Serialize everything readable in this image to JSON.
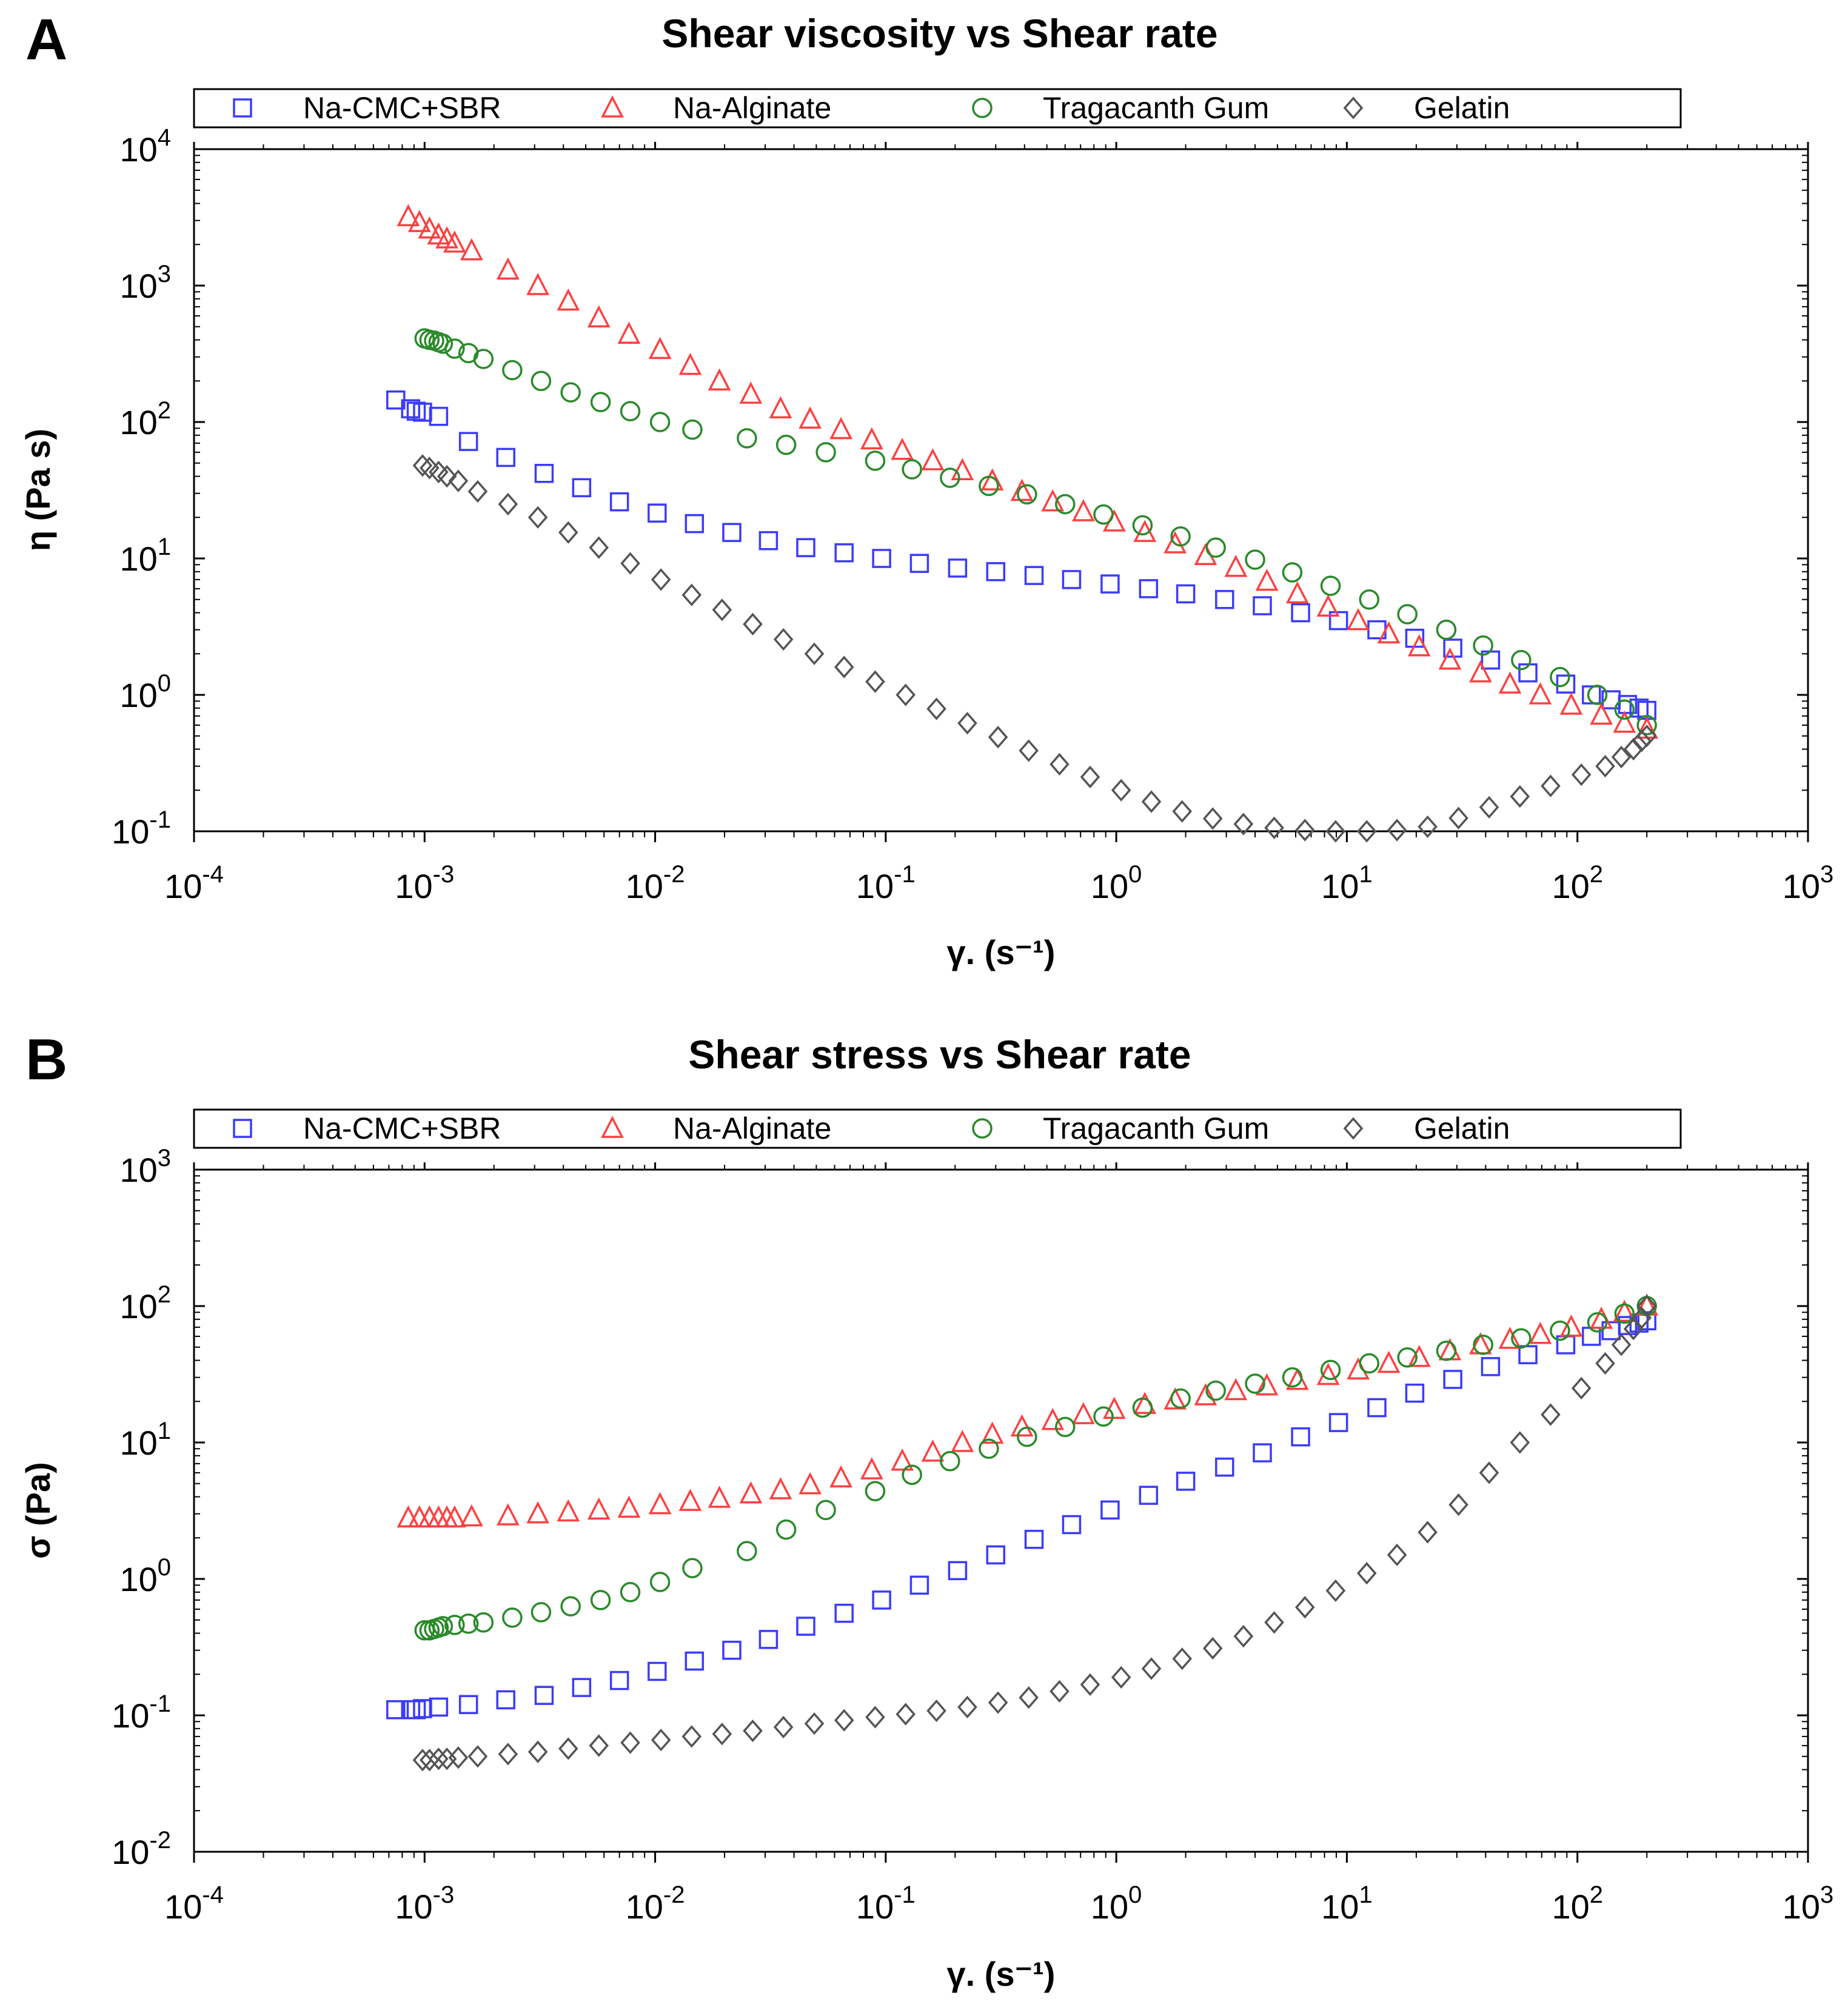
{
  "chart_data": [
    {
      "panel": "A",
      "type": "scatter",
      "title": "Shear viscosity vs Shear rate",
      "xlabel": "γ. (s⁻¹)",
      "ylabel": "η (Pa s)",
      "xscale": "log",
      "yscale": "log",
      "xlim": [
        0.0001,
        1000
      ],
      "ylim": [
        0.1,
        10000
      ],
      "x_ticks": [
        "10-4",
        "10-3",
        "10-2",
        "10-1",
        "100",
        "101",
        "102",
        "103"
      ],
      "y_ticks": [
        "10-1",
        "100",
        "101",
        "102",
        "103",
        "104"
      ],
      "legend_position": "top",
      "series": [
        {
          "name": "Na-CMC+SBR",
          "marker": "square",
          "color": "#3b3bff",
          "x": [
            0.00075,
            0.00087,
            0.00092,
            0.00098,
            0.00115,
            0.00155,
            0.00225,
            0.0033,
            0.0048,
            0.007,
            0.0102,
            0.0148,
            0.0215,
            0.031,
            0.045,
            0.066,
            0.096,
            0.14,
            0.205,
            0.3,
            0.44,
            0.64,
            0.94,
            1.38,
            2.0,
            2.95,
            4.3,
            6.3,
            9.2,
            13.5,
            19.7,
            28.8,
            42,
            61,
            89,
            115,
            140,
            165,
            185,
            200
          ],
          "y": [
            145,
            125,
            120,
            118,
            110,
            72,
            55,
            42,
            33,
            26,
            21.5,
            18,
            15.5,
            13.5,
            12,
            11,
            10,
            9.2,
            8.5,
            8.0,
            7.5,
            7.0,
            6.5,
            6.0,
            5.5,
            5.0,
            4.5,
            4.0,
            3.5,
            3.0,
            2.6,
            2.2,
            1.8,
            1.45,
            1.2,
            1.0,
            0.92,
            0.85,
            0.8,
            0.77
          ]
        },
        {
          "name": "Na-Alginate",
          "marker": "triangle",
          "color": "#ff4040",
          "x": [
            0.00085,
            0.00095,
            0.00105,
            0.00115,
            0.00125,
            0.00135,
            0.0016,
            0.0023,
            0.0031,
            0.0042,
            0.0057,
            0.0077,
            0.0105,
            0.0142,
            0.019,
            0.026,
            0.035,
            0.047,
            0.064,
            0.087,
            0.118,
            0.16,
            0.215,
            0.29,
            0.39,
            0.53,
            0.72,
            0.98,
            1.33,
            1.8,
            2.44,
            3.3,
            4.5,
            6.1,
            8.3,
            11.2,
            15.2,
            20.6,
            28,
            38,
            51,
            69,
            94,
            127,
            160,
            200
          ],
          "y": [
            3200,
            2900,
            2600,
            2350,
            2200,
            2050,
            1800,
            1300,
            1000,
            770,
            580,
            440,
            340,
            260,
            200,
            160,
            125,
            105,
            88,
            74,
            62,
            52,
            44,
            37,
            31,
            26,
            22,
            18.5,
            15.5,
            12.8,
            10.5,
            8.6,
            6.8,
            5.5,
            4.4,
            3.5,
            2.8,
            2.25,
            1.8,
            1.45,
            1.2,
            1.0,
            0.84,
            0.71,
            0.62,
            0.56
          ]
        },
        {
          "name": "Tragacanth Gum",
          "marker": "circle",
          "color": "#2a8a2a",
          "x": [
            0.001,
            0.00105,
            0.0011,
            0.00115,
            0.0012,
            0.00135,
            0.00155,
            0.0018,
            0.0024,
            0.0032,
            0.0043,
            0.0058,
            0.0078,
            0.0105,
            0.0145,
            0.025,
            0.037,
            0.055,
            0.09,
            0.13,
            0.19,
            0.28,
            0.41,
            0.6,
            0.88,
            1.3,
            1.9,
            2.7,
            4.0,
            5.8,
            8.5,
            12.5,
            18.3,
            27,
            39,
            57,
            84,
            122,
            160,
            200
          ],
          "y": [
            410,
            400,
            395,
            385,
            375,
            345,
            320,
            290,
            240,
            200,
            165,
            140,
            120,
            100,
            88,
            76,
            68,
            60,
            52,
            45,
            39,
            34,
            29.5,
            25,
            21,
            17.5,
            14.5,
            12,
            9.8,
            7.9,
            6.3,
            5.0,
            3.9,
            3.0,
            2.3,
            1.8,
            1.35,
            1.0,
            0.78,
            0.6
          ]
        },
        {
          "name": "Gelatin",
          "marker": "diamond",
          "color": "#555555",
          "x": [
            0.00098,
            0.00105,
            0.00115,
            0.00125,
            0.0014,
            0.0017,
            0.0023,
            0.0031,
            0.0042,
            0.0057,
            0.0078,
            0.0106,
            0.0144,
            0.0195,
            0.0265,
            0.036,
            0.049,
            0.066,
            0.09,
            0.122,
            0.166,
            0.226,
            0.307,
            0.417,
            0.567,
            0.77,
            1.05,
            1.42,
            1.93,
            2.62,
            3.56,
            4.84,
            6.58,
            8.94,
            12.2,
            16.5,
            22.4,
            30.5,
            41.4,
            56.3,
            76.5,
            104,
            132,
            155,
            175,
            190,
            200
          ],
          "y": [
            48,
            46,
            43,
            40,
            37,
            31,
            25,
            20,
            15.5,
            12,
            9.2,
            7.0,
            5.4,
            4.2,
            3.3,
            2.55,
            2.0,
            1.6,
            1.25,
            1.0,
            0.79,
            0.62,
            0.49,
            0.39,
            0.31,
            0.25,
            0.2,
            0.165,
            0.14,
            0.124,
            0.113,
            0.106,
            0.102,
            0.1,
            0.1,
            0.102,
            0.108,
            0.125,
            0.15,
            0.18,
            0.215,
            0.26,
            0.3,
            0.35,
            0.4,
            0.46,
            0.5
          ]
        }
      ]
    },
    {
      "panel": "B",
      "type": "scatter",
      "title": "Shear stress vs Shear rate",
      "xlabel": "γ. (s⁻¹)",
      "ylabel": "σ (Pa)",
      "xscale": "log",
      "yscale": "log",
      "xlim": [
        0.0001,
        1000
      ],
      "ylim": [
        0.01,
        1000
      ],
      "x_ticks": [
        "10-4",
        "10-3",
        "10-2",
        "10-1",
        "100",
        "101",
        "102",
        "103"
      ],
      "y_ticks": [
        "10-2",
        "10-1",
        "100",
        "101",
        "102",
        "103"
      ],
      "legend_position": "top",
      "series": [
        {
          "name": "Na-CMC+SBR",
          "marker": "square",
          "color": "#3b3bff",
          "x": [
            0.00075,
            0.00087,
            0.00092,
            0.00098,
            0.00115,
            0.00155,
            0.00225,
            0.0033,
            0.0048,
            0.007,
            0.0102,
            0.0148,
            0.0215,
            0.031,
            0.045,
            0.066,
            0.096,
            0.14,
            0.205,
            0.3,
            0.44,
            0.64,
            0.94,
            1.38,
            2.0,
            2.95,
            4.3,
            6.3,
            9.2,
            13.5,
            19.7,
            28.8,
            42,
            61,
            89,
            115,
            140,
            165,
            185,
            200
          ],
          "y": [
            0.11,
            0.11,
            0.11,
            0.112,
            0.115,
            0.12,
            0.13,
            0.14,
            0.16,
            0.18,
            0.21,
            0.25,
            0.3,
            0.36,
            0.45,
            0.56,
            0.7,
            0.9,
            1.15,
            1.5,
            1.95,
            2.5,
            3.2,
            4.1,
            5.2,
            6.6,
            8.4,
            11,
            14,
            18,
            23,
            29,
            36,
            44,
            52,
            60,
            66,
            72,
            75,
            78
          ]
        },
        {
          "name": "Na-Alginate",
          "marker": "triangle",
          "color": "#ff4040",
          "x": [
            0.00085,
            0.00095,
            0.00105,
            0.00115,
            0.00125,
            0.00135,
            0.0016,
            0.0023,
            0.0031,
            0.0042,
            0.0057,
            0.0077,
            0.0105,
            0.0142,
            0.019,
            0.026,
            0.035,
            0.047,
            0.064,
            0.087,
            0.118,
            0.16,
            0.215,
            0.29,
            0.39,
            0.53,
            0.72,
            0.98,
            1.33,
            1.8,
            2.44,
            3.3,
            4.5,
            6.1,
            8.3,
            11.2,
            15.2,
            20.6,
            28,
            38,
            51,
            69,
            94,
            127,
            160,
            200
          ],
          "y": [
            2.8,
            2.8,
            2.8,
            2.8,
            2.8,
            2.8,
            2.85,
            2.9,
            3.0,
            3.1,
            3.2,
            3.3,
            3.5,
            3.7,
            3.9,
            4.2,
            4.5,
            4.9,
            5.5,
            6.3,
            7.3,
            8.5,
            10,
            11.5,
            13,
            14.5,
            16,
            17.5,
            19,
            20.5,
            22,
            24,
            26,
            28.5,
            31,
            34,
            38,
            42,
            47,
            52,
            57,
            62,
            70,
            80,
            90,
            100
          ]
        },
        {
          "name": "Tragacanth Gum",
          "marker": "circle",
          "color": "#2a8a2a",
          "x": [
            0.001,
            0.00105,
            0.0011,
            0.00115,
            0.0012,
            0.00135,
            0.00155,
            0.0018,
            0.0024,
            0.0032,
            0.0043,
            0.0058,
            0.0078,
            0.0105,
            0.0145,
            0.025,
            0.037,
            0.055,
            0.09,
            0.13,
            0.19,
            0.28,
            0.41,
            0.6,
            0.88,
            1.3,
            1.9,
            2.7,
            4.0,
            5.8,
            8.5,
            12.5,
            18.3,
            27,
            39,
            57,
            84,
            122,
            160,
            200
          ],
          "y": [
            0.42,
            0.42,
            0.43,
            0.44,
            0.45,
            0.46,
            0.47,
            0.48,
            0.52,
            0.57,
            0.63,
            0.7,
            0.8,
            0.95,
            1.2,
            1.6,
            2.3,
            3.2,
            4.4,
            5.8,
            7.3,
            9.0,
            11,
            13,
            15.5,
            18,
            21,
            24,
            27,
            30,
            34,
            38,
            42,
            47,
            52,
            58,
            66,
            76,
            88,
            100
          ]
        },
        {
          "name": "Gelatin",
          "marker": "diamond",
          "color": "#555555",
          "x": [
            0.00098,
            0.00105,
            0.00115,
            0.00125,
            0.0014,
            0.0017,
            0.0023,
            0.0031,
            0.0042,
            0.0057,
            0.0078,
            0.0106,
            0.0144,
            0.0195,
            0.0265,
            0.036,
            0.049,
            0.066,
            0.09,
            0.122,
            0.166,
            0.226,
            0.307,
            0.417,
            0.567,
            0.77,
            1.05,
            1.42,
            1.93,
            2.62,
            3.56,
            4.84,
            6.58,
            8.94,
            12.2,
            16.5,
            22.4,
            30.5,
            41.4,
            56.3,
            76.5,
            104,
            132,
            155,
            175,
            190,
            200
          ],
          "y": [
            0.047,
            0.047,
            0.048,
            0.048,
            0.049,
            0.05,
            0.052,
            0.054,
            0.057,
            0.06,
            0.063,
            0.066,
            0.07,
            0.073,
            0.077,
            0.082,
            0.087,
            0.092,
            0.097,
            0.102,
            0.108,
            0.115,
            0.124,
            0.135,
            0.15,
            0.168,
            0.19,
            0.22,
            0.26,
            0.31,
            0.38,
            0.48,
            0.62,
            0.82,
            1.1,
            1.5,
            2.2,
            3.5,
            6.0,
            10,
            16,
            25,
            38,
            52,
            68,
            82,
            100
          ]
        }
      ]
    }
  ]
}
